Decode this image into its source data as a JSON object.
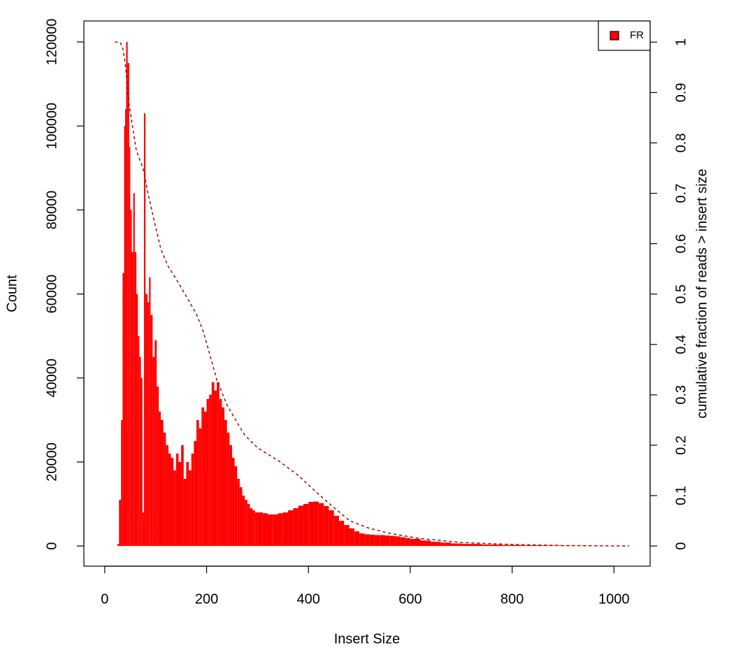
{
  "chart_data": {
    "type": "bar",
    "x_label": "Insert Size",
    "y_label": "Count",
    "y2_label": "cumulative fraction of reads > insert size",
    "legend": "top-right",
    "xlim": [
      -41,
      1071
    ],
    "ylim": [
      -4800,
      125000
    ],
    "y2lim": [
      -0.04,
      1.042
    ],
    "xticks": [
      0,
      200,
      400,
      600,
      800,
      1000
    ],
    "yticks": [
      0,
      20000,
      40000,
      60000,
      80000,
      100000,
      120000
    ],
    "y2ticks": [
      0,
      0.1,
      0.2,
      0.3,
      0.4,
      0.5,
      0.6,
      0.7,
      0.8,
      0.9,
      1
    ],
    "x": [
      20,
      25,
      28,
      32,
      35,
      38,
      40,
      42,
      45,
      48,
      50,
      53,
      56,
      59,
      62,
      65,
      68,
      71,
      74,
      77,
      80,
      84,
      87,
      90,
      94,
      98,
      102,
      106,
      110,
      115,
      120,
      125,
      130,
      135,
      140,
      145,
      150,
      155,
      160,
      165,
      170,
      175,
      180,
      185,
      190,
      195,
      200,
      205,
      210,
      215,
      220,
      225,
      230,
      235,
      240,
      245,
      250,
      255,
      260,
      265,
      270,
      275,
      280,
      285,
      290,
      295,
      300,
      310,
      320,
      330,
      340,
      350,
      360,
      370,
      380,
      390,
      400,
      410,
      420,
      430,
      440,
      450,
      460,
      470,
      480,
      490,
      500,
      510,
      520,
      530,
      540,
      550,
      560,
      570,
      580,
      590,
      600,
      620,
      640,
      660,
      680,
      700,
      740,
      780,
      820,
      860,
      900,
      940,
      980,
      1030
    ],
    "series": [
      {
        "name": "FR",
        "color": "#ff0000",
        "values": [
          0,
          500,
          11000,
          30000,
          65000,
          100000,
          104000,
          120000,
          115000,
          95000,
          80000,
          70000,
          84000,
          70000,
          60000,
          50000,
          45000,
          40000,
          8000,
          103000,
          60000,
          58000,
          64000,
          55000,
          45000,
          49000,
          38000,
          32000,
          30000,
          27000,
          24000,
          22000,
          21000,
          18000,
          22000,
          20000,
          24000,
          16000,
          20000,
          18000,
          22000,
          25000,
          30000,
          28000,
          33000,
          32000,
          35000,
          36000,
          39000,
          37000,
          39000,
          35000,
          33000,
          30000,
          27000,
          24000,
          21000,
          19000,
          16000,
          14000,
          12000,
          11000,
          10000,
          9000,
          8500,
          8000,
          8000,
          7800,
          7500,
          7500,
          7800,
          8000,
          8500,
          9000,
          9600,
          10000,
          10500,
          10600,
          10200,
          9500,
          8500,
          7200,
          6000,
          5000,
          4200,
          3500,
          3000,
          2800,
          2700,
          2600,
          2600,
          2500,
          2400,
          2300,
          2100,
          1900,
          1700,
          1300,
          1000,
          800,
          600,
          500,
          350,
          250,
          180,
          120,
          80,
          50,
          30,
          0
        ]
      }
    ],
    "cumulative": {
      "color": "#a00000",
      "dashed": true,
      "axis": "y2",
      "x": [
        20,
        30,
        35,
        40,
        48,
        62,
        75,
        85,
        96,
        110,
        124,
        140,
        165,
        180,
        192,
        205,
        220,
        240,
        260,
        275,
        300,
        343,
        380,
        412,
        440,
        481,
        520,
        560,
        618,
        700,
        800,
        900,
        1030
      ],
      "values": [
        1,
        1,
        0.99,
        0.96,
        0.875,
        0.785,
        0.75,
        0.7,
        0.65,
        0.59,
        0.556,
        0.53,
        0.487,
        0.46,
        0.43,
        0.385,
        0.33,
        0.28,
        0.245,
        0.22,
        0.195,
        0.168,
        0.14,
        0.11,
        0.085,
        0.05,
        0.035,
        0.025,
        0.015,
        0.007,
        0.003,
        0.001,
        0
      ]
    }
  }
}
